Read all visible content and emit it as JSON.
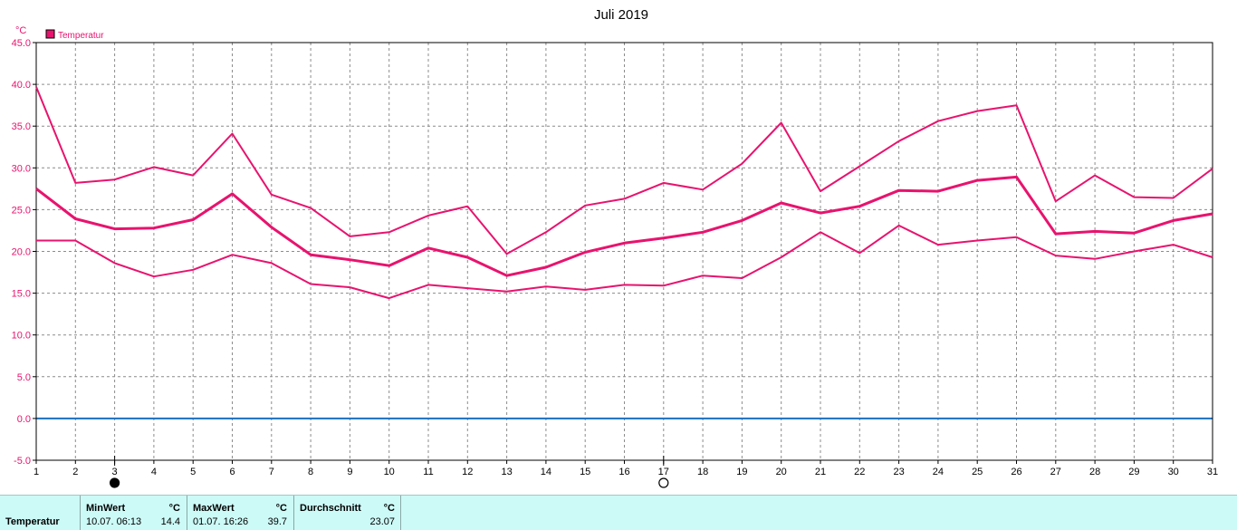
{
  "chart_data": {
    "type": "line",
    "title": "Juli 2019",
    "y_unit": "°C",
    "ylim": [
      -5.0,
      45.0
    ],
    "y_ticks": [
      "45.0",
      "40.0",
      "35.0",
      "30.0",
      "25.0",
      "20.0",
      "15.0",
      "10.0",
      "5.0",
      "0.0",
      "-5.0"
    ],
    "x": [
      1,
      2,
      3,
      4,
      5,
      6,
      7,
      8,
      9,
      10,
      11,
      12,
      13,
      14,
      15,
      16,
      17,
      18,
      19,
      20,
      21,
      22,
      23,
      24,
      25,
      26,
      27,
      28,
      29,
      30,
      31
    ],
    "x_tick_labels": [
      "1",
      "2",
      "3",
      "4",
      "5",
      "6",
      "7",
      "8",
      "9",
      "10",
      "11",
      "12",
      "13",
      "14",
      "15",
      "16",
      "17",
      "18",
      "19",
      "20",
      "21",
      "22",
      "23",
      "24",
      "25",
      "26",
      "27",
      "28",
      "29",
      "30",
      "31"
    ],
    "legend": {
      "label": "Temperatur",
      "color": "#e8136e",
      "placement": "top-left"
    },
    "grid": true,
    "zero_line_color": "#1a6fc0",
    "series": [
      {
        "name": "Temperatur",
        "role": "max",
        "color": "#e8136e",
        "values": [
          39.7,
          28.2,
          28.6,
          30.1,
          29.1,
          34.1,
          26.8,
          25.2,
          21.8,
          22.3,
          24.3,
          25.4,
          19.7,
          22.3,
          25.5,
          26.3,
          28.2,
          27.4,
          30.5,
          35.4,
          27.2,
          30.2,
          33.2,
          35.6,
          36.8,
          37.5,
          26.0,
          29.1,
          26.5,
          26.4,
          29.9
        ]
      },
      {
        "name": "Temperatur",
        "role": "avg",
        "color": "#e8136e",
        "values": [
          27.5,
          23.9,
          22.7,
          22.8,
          23.8,
          26.9,
          22.9,
          19.6,
          19.0,
          18.3,
          20.4,
          19.3,
          17.1,
          18.1,
          19.9,
          21.0,
          21.6,
          22.3,
          23.7,
          25.8,
          24.6,
          25.4,
          27.3,
          27.2,
          28.5,
          28.9,
          22.1,
          22.4,
          22.2,
          23.7,
          24.5
        ]
      },
      {
        "name": "Temperatur",
        "role": "min",
        "color": "#e8136e",
        "values": [
          21.3,
          21.3,
          18.6,
          17.0,
          17.8,
          19.6,
          18.6,
          16.1,
          15.7,
          14.4,
          16.0,
          15.6,
          15.2,
          15.8,
          15.4,
          16.0,
          15.9,
          17.1,
          16.8,
          19.3,
          22.3,
          19.8,
          23.1,
          20.8,
          21.3,
          21.7,
          19.5,
          19.1,
          20.0,
          20.8,
          19.3
        ]
      }
    ],
    "moon_phase_markers": [
      {
        "day": 3,
        "phase": "new-moon"
      },
      {
        "day": 17,
        "phase": "full-moon"
      }
    ]
  },
  "stats": {
    "row_label": "Temperatur",
    "min": {
      "header": "MinWert",
      "unit": "°C",
      "datetime": "10.07.  06:13",
      "value": "14.4"
    },
    "max": {
      "header": "MaxWert",
      "unit": "°C",
      "datetime": "01.07.  16:26",
      "value": "39.7"
    },
    "avg": {
      "header": "Durchschnitt",
      "unit": "°C",
      "value": "23.07"
    }
  }
}
